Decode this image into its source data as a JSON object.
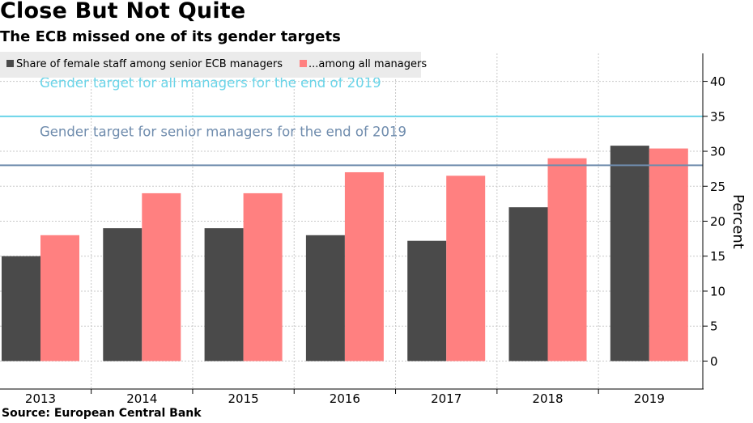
{
  "header": {
    "title": "Close But Not Quite",
    "subtitle": "The ECB missed one of its gender targets"
  },
  "footer": {
    "source": "Source: European Central Bank"
  },
  "colors": {
    "senior": "#4a4a4a",
    "all": "#ff8080",
    "target_all": "#6ad4e8",
    "target_senior": "#6f8cad",
    "grid": "#c8c8c8",
    "legend_bg": "#ebebeb"
  },
  "chart_data": {
    "type": "bar",
    "categories": [
      "2013",
      "2014",
      "2015",
      "2016",
      "2017",
      "2018",
      "2019"
    ],
    "series": [
      {
        "name": "Share of female staff among senior ECB managers",
        "values": [
          15,
          19,
          19,
          18,
          17.2,
          22,
          30.8
        ]
      },
      {
        "name": "...among all managers",
        "values": [
          18,
          24,
          24,
          27,
          26.5,
          29,
          30.4
        ]
      }
    ],
    "reference_lines": [
      {
        "label": "Gender target for all managers for the end of 2019",
        "value": 35
      },
      {
        "label": "Gender target for senior managers for the end of 2019",
        "value": 28
      }
    ],
    "ylabel": "Percent",
    "ylim": [
      -4,
      44
    ],
    "yticks": [
      0,
      5,
      10,
      15,
      20,
      25,
      30,
      35,
      40
    ],
    "legend_position": "top-left",
    "grid": true
  }
}
